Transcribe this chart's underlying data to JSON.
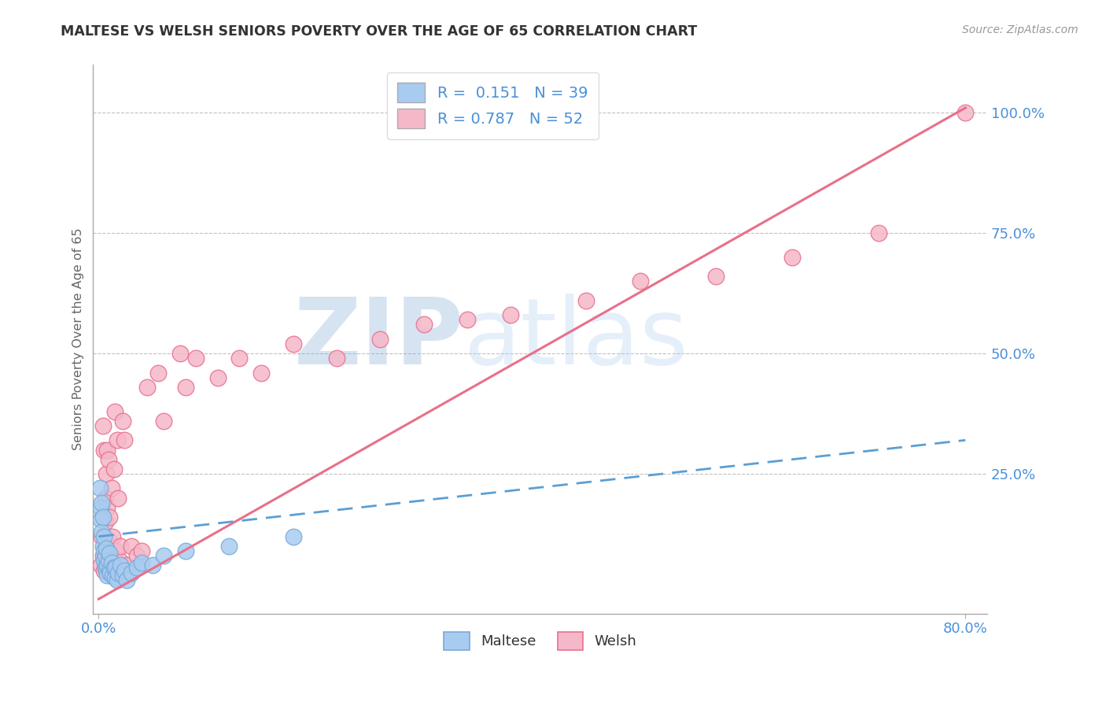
{
  "title": "MALTESE VS WELSH SENIORS POVERTY OVER THE AGE OF 65 CORRELATION CHART",
  "source_text": "Source: ZipAtlas.com",
  "ylabel": "Seniors Poverty Over the Age of 65",
  "xlim": [
    -0.005,
    0.82
  ],
  "ylim": [
    -0.04,
    1.1
  ],
  "bg_color": "#ffffff",
  "maltese_color": "#A8CCF0",
  "maltese_edge_color": "#7AAAD8",
  "welsh_color": "#F5B8C8",
  "welsh_edge_color": "#E87090",
  "maltese_R": 0.151,
  "maltese_N": 39,
  "welsh_R": 0.787,
  "welsh_N": 52,
  "tick_label_color": "#4A90D9",
  "title_color": "#333333",
  "grid_color": "#bbbbbb",
  "watermark_color": "#C8D8F0",
  "axis_label_color": "#666666",
  "regression_blue_color": "#5A9FD4",
  "regression_pink_color": "#E8708A",
  "ytick_positions": [
    0.0,
    0.25,
    0.5,
    0.75,
    1.0
  ],
  "ytick_labels": [
    "",
    "25.0%",
    "50.0%",
    "75.0%",
    "100.0%"
  ],
  "maltese_x": [
    0.001,
    0.002,
    0.002,
    0.003,
    0.003,
    0.004,
    0.004,
    0.005,
    0.005,
    0.005,
    0.006,
    0.006,
    0.007,
    0.007,
    0.008,
    0.008,
    0.009,
    0.01,
    0.01,
    0.011,
    0.012,
    0.013,
    0.014,
    0.015,
    0.016,
    0.017,
    0.018,
    0.02,
    0.022,
    0.024,
    0.026,
    0.03,
    0.035,
    0.04,
    0.05,
    0.06,
    0.08,
    0.12,
    0.18
  ],
  "maltese_y": [
    0.22,
    0.18,
    0.155,
    0.19,
    0.13,
    0.1,
    0.16,
    0.09,
    0.07,
    0.12,
    0.055,
    0.08,
    0.05,
    0.095,
    0.06,
    0.04,
    0.07,
    0.05,
    0.085,
    0.045,
    0.065,
    0.04,
    0.055,
    0.035,
    0.055,
    0.03,
    0.045,
    0.06,
    0.04,
    0.05,
    0.03,
    0.045,
    0.055,
    0.065,
    0.06,
    0.08,
    0.09,
    0.1,
    0.12
  ],
  "welsh_x": [
    0.002,
    0.003,
    0.004,
    0.004,
    0.005,
    0.005,
    0.006,
    0.006,
    0.007,
    0.007,
    0.008,
    0.008,
    0.009,
    0.01,
    0.01,
    0.011,
    0.012,
    0.013,
    0.014,
    0.015,
    0.016,
    0.017,
    0.018,
    0.019,
    0.02,
    0.022,
    0.024,
    0.026,
    0.03,
    0.035,
    0.04,
    0.045,
    0.055,
    0.06,
    0.075,
    0.08,
    0.09,
    0.11,
    0.13,
    0.15,
    0.18,
    0.22,
    0.26,
    0.3,
    0.34,
    0.38,
    0.45,
    0.5,
    0.57,
    0.64,
    0.72,
    0.8
  ],
  "welsh_y": [
    0.06,
    0.12,
    0.35,
    0.08,
    0.3,
    0.05,
    0.2,
    0.15,
    0.25,
    0.1,
    0.3,
    0.18,
    0.28,
    0.11,
    0.16,
    0.08,
    0.22,
    0.12,
    0.26,
    0.38,
    0.09,
    0.32,
    0.2,
    0.07,
    0.1,
    0.36,
    0.32,
    0.06,
    0.1,
    0.08,
    0.09,
    0.43,
    0.46,
    0.36,
    0.5,
    0.43,
    0.49,
    0.45,
    0.49,
    0.46,
    0.52,
    0.49,
    0.53,
    0.56,
    0.57,
    0.58,
    0.61,
    0.65,
    0.66,
    0.7,
    0.75,
    1.0
  ],
  "welsh_line_x0": 0.0,
  "welsh_line_x1": 0.8,
  "welsh_line_y0": -0.01,
  "welsh_line_y1": 1.01,
  "maltese_line_x0": 0.0,
  "maltese_line_x1": 0.8,
  "maltese_line_y0": 0.12,
  "maltese_line_y1": 0.32
}
